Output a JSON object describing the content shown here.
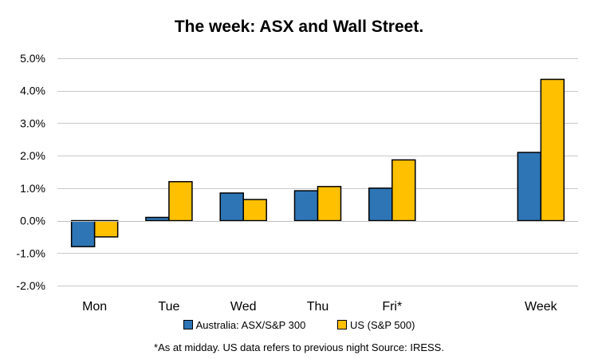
{
  "chart_data": {
    "type": "bar",
    "title": "The week:  ASX and Wall Street.",
    "categories": [
      "Mon",
      "Tue",
      "Wed",
      "Thu",
      "Fri*",
      "",
      "Week"
    ],
    "series": [
      {
        "name": "Australia: ASX/S&P 300",
        "color": "#2e75b6",
        "values": [
          -0.8,
          0.1,
          0.85,
          0.92,
          1.0,
          null,
          2.1
        ]
      },
      {
        "name": "US (S&P 500)",
        "color": "#ffc000",
        "values": [
          -0.5,
          1.2,
          0.65,
          1.05,
          1.87,
          null,
          4.35
        ]
      }
    ],
    "ylim": [
      -2.0,
      5.0
    ],
    "yticks": [
      -2.0,
      -1.0,
      0.0,
      1.0,
      2.0,
      3.0,
      4.0,
      5.0
    ],
    "ytick_format": "percent_1dp",
    "grid": true,
    "legend_position": "bottom",
    "footnote": "*As at midday. US data refers to previous night  Source:  IRESS."
  }
}
